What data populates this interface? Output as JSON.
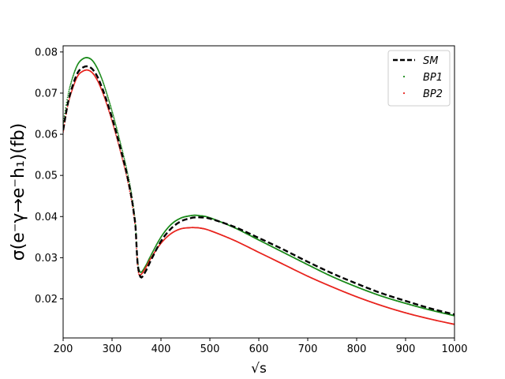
{
  "chart_data": {
    "type": "line",
    "title": "",
    "xlabel": "√s",
    "ylabel": "σ(e⁻γ→e⁻h₁)(fb)",
    "xlim": [
      200,
      1000
    ],
    "ylim": [
      0.0105,
      0.0815
    ],
    "xticks": [
      200,
      300,
      400,
      500,
      600,
      700,
      800,
      900,
      1000
    ],
    "yticks": [
      0.02,
      0.03,
      0.04,
      0.05,
      0.06,
      0.07,
      0.08
    ],
    "xtick_labels": [
      "200",
      "300",
      "400",
      "500",
      "600",
      "700",
      "800",
      "900",
      "1000"
    ],
    "ytick_labels": [
      "0.02",
      "0.03",
      "0.04",
      "0.05",
      "0.06",
      "0.07",
      "0.08"
    ],
    "grid": false,
    "legend_position": "top-right",
    "series": [
      {
        "name": "SM",
        "style": "dashed",
        "color": "#000000",
        "x": [
          200,
          210,
          220,
          230,
          240,
          250,
          260,
          270,
          280,
          290,
          300,
          310,
          320,
          330,
          340,
          345,
          348,
          350,
          352,
          355,
          360,
          370,
          380,
          400,
          420,
          440,
          460,
          470,
          480,
          500,
          550,
          600,
          650,
          700,
          750,
          800,
          850,
          900,
          950,
          1000
        ],
        "y": [
          0.061,
          0.0677,
          0.072,
          0.075,
          0.0762,
          0.0765,
          0.0758,
          0.074,
          0.0712,
          0.0678,
          0.064,
          0.0598,
          0.0553,
          0.0505,
          0.0445,
          0.0405,
          0.0375,
          0.033,
          0.029,
          0.0265,
          0.0252,
          0.027,
          0.0295,
          0.034,
          0.037,
          0.0388,
          0.0396,
          0.0398,
          0.0398,
          0.0395,
          0.0375,
          0.0348,
          0.032,
          0.029,
          0.0262,
          0.0237,
          0.0214,
          0.0195,
          0.0177,
          0.0162
        ]
      },
      {
        "name": "BP1",
        "style": "dots",
        "color": "#1a8a1a",
        "x": [
          200,
          210,
          220,
          230,
          240,
          250,
          260,
          270,
          280,
          290,
          300,
          310,
          320,
          330,
          340,
          345,
          348,
          350,
          352,
          355,
          360,
          370,
          380,
          400,
          420,
          440,
          460,
          470,
          480,
          500,
          550,
          600,
          650,
          700,
          750,
          800,
          850,
          900,
          950,
          1000
        ],
        "y": [
          0.0625,
          0.0695,
          0.074,
          0.077,
          0.0783,
          0.0786,
          0.0779,
          0.076,
          0.0732,
          0.0696,
          0.0656,
          0.0612,
          0.0565,
          0.0515,
          0.0455,
          0.0412,
          0.038,
          0.0338,
          0.0298,
          0.0272,
          0.0265,
          0.0283,
          0.0307,
          0.035,
          0.038,
          0.0396,
          0.0402,
          0.0403,
          0.0402,
          0.0397,
          0.0373,
          0.0343,
          0.0313,
          0.0283,
          0.0254,
          0.0229,
          0.0207,
          0.0189,
          0.0173,
          0.0159
        ]
      },
      {
        "name": "BP2",
        "style": "dots",
        "color": "#e8251f",
        "x": [
          200,
          210,
          220,
          230,
          240,
          250,
          260,
          270,
          280,
          290,
          300,
          310,
          320,
          330,
          340,
          345,
          348,
          350,
          352,
          355,
          360,
          370,
          380,
          400,
          420,
          440,
          460,
          470,
          480,
          500,
          550,
          600,
          650,
          700,
          750,
          800,
          850,
          900,
          950,
          1000
        ],
        "y": [
          0.0605,
          0.0672,
          0.0713,
          0.0742,
          0.0753,
          0.0756,
          0.0749,
          0.0731,
          0.0704,
          0.067,
          0.0632,
          0.059,
          0.0545,
          0.0497,
          0.0438,
          0.0398,
          0.0368,
          0.0322,
          0.0283,
          0.026,
          0.026,
          0.0278,
          0.03,
          0.0335,
          0.0358,
          0.037,
          0.0373,
          0.0373,
          0.0372,
          0.0366,
          0.0342,
          0.0313,
          0.0284,
          0.0255,
          0.0229,
          0.0205,
          0.0184,
          0.0166,
          0.0151,
          0.0138
        ]
      }
    ]
  }
}
